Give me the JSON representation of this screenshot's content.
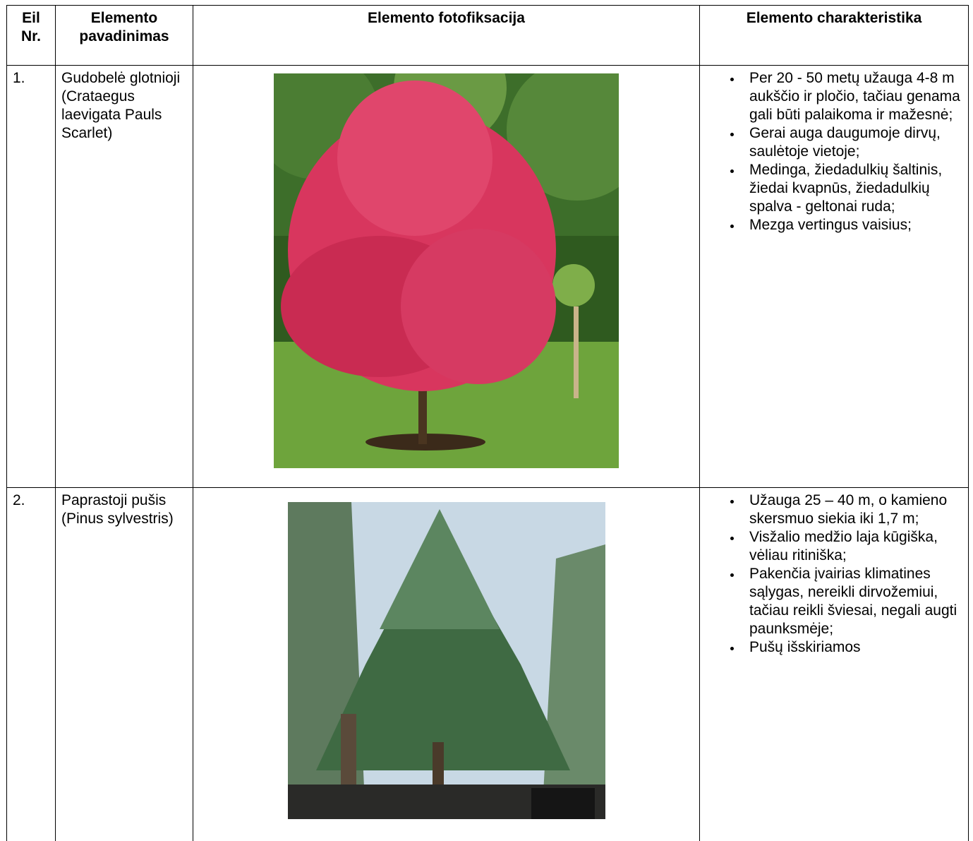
{
  "table": {
    "header": [
      "Eil Nr.",
      "Elemento pavadinimas",
      "Elemento fotofiksacija",
      "Elemento charakteristika"
    ],
    "rows": [
      {
        "number": "1.",
        "name": "Gudobelė glotnioji (Crataegus laevigata Pauls Scarlet)",
        "bullets": [
          "Per 20 - 50 metų užauga 4-8 m aukščio ir pločio, tačiau genama gali būti palaikoma ir mažesnė;",
          "Gerai auga daugumoje dirvų, saulėtoje vietoje;",
          "Medinga, žiedadulkių šaltinis, žiedai kvapnūs, žiedadulkių spalva - geltonai ruda;",
          "Mezga vertingus vaisius;"
        ]
      },
      {
        "number": "2.",
        "name": "Paprastoji pušis (Pinus sylvestris)",
        "bullets": [
          "Užauga 25 – 40 m, o kamieno skersmuo siekia iki 1,7 m;",
          "Visžalio medžio laja kūgiška, vėliau ritiniška;",
          "Pakenčia įvairias klimatines sąlygas, nereikli dirvožemiui, tačiau reikli šviesai, negali augti paunksmėje;",
          "Pušų išskiriamos"
        ]
      }
    ]
  }
}
